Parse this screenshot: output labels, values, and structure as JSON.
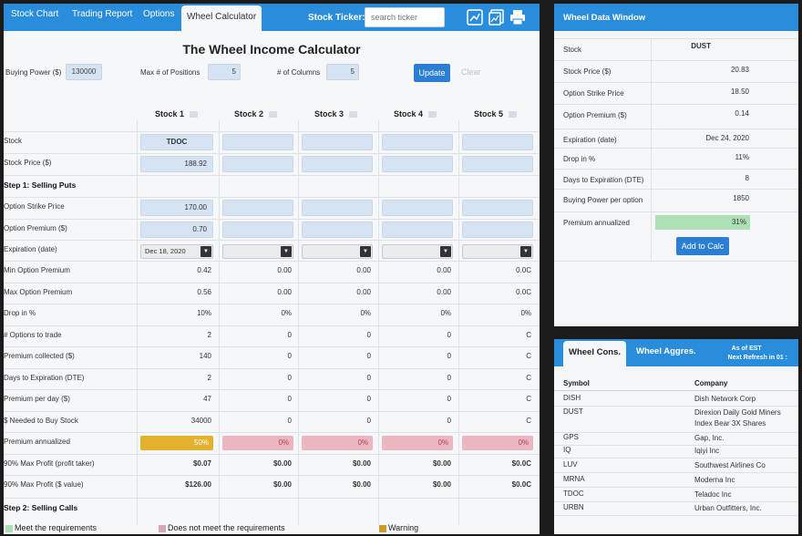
{
  "nav": {
    "tabs": [
      "Stock Chart",
      "Trading Report",
      "Options",
      "Wheel Calculator"
    ],
    "ticker_label": "Stock Ticker:",
    "ticker_placeholder": "search ticker",
    "icons": [
      "chart-icon",
      "report-icon",
      "print-icon"
    ]
  },
  "calculator": {
    "title": "The Wheel Income Calculator",
    "buying_power_label": "Buying Power ($)",
    "buying_power": "130000",
    "max_positions_label": "Max # of Positions",
    "max_positions": "5",
    "columns_label": "# of Columns",
    "columns": "5",
    "update_label": "Update",
    "clear_label": "Clear",
    "stocks": [
      "Stock 1",
      "Stock 2",
      "Stock 3",
      "Stock 4",
      "Stock 5"
    ],
    "rows": {
      "stock": "Stock",
      "stock_price": "Stock Price ($)",
      "step1": "Step 1: Selling Puts",
      "strike": "Option Strike Price",
      "premium": "Option Premium ($)",
      "expiration": "Expiration (date)",
      "min_premium": "Min Option Premium",
      "max_premium": "Max Option Premium",
      "drop": "Drop in %",
      "options_to_trade": "# Options to trade",
      "premium_collected": "Premium collected ($)",
      "days_to_exp": "Days to Expiration (DTE)",
      "premium_per_day": "Premium per day ($)",
      "needed_to_buy": "$ Needed to Buy Stock",
      "premium_annualized": "Premium annualized",
      "max_profit_taker": "90% Max Profit (profit taker)",
      "max_profit_value": "90% Max Profit ($ value)",
      "step2": "Step 2: Selling Calls"
    },
    "values": {
      "stock": [
        "TDOC",
        "",
        "",
        "",
        ""
      ],
      "stock_price": [
        "188.92",
        "",
        "",
        "",
        ""
      ],
      "strike": [
        "170.00",
        "",
        "",
        "",
        ""
      ],
      "premium": [
        "0.70",
        "",
        "",
        "",
        ""
      ],
      "expiration": [
        "Dec 18, 2020",
        "",
        "",
        "",
        ""
      ],
      "min_premium": [
        "0.42",
        "0.00",
        "0.00",
        "0.00",
        "0.0C"
      ],
      "max_premium": [
        "0.56",
        "0.00",
        "0.00",
        "0.00",
        "0.0C"
      ],
      "drop": [
        "10%",
        "0%",
        "0%",
        "0%",
        "0%"
      ],
      "options_to_trade": [
        "2",
        "0",
        "0",
        "0",
        "C"
      ],
      "premium_collected": [
        "140",
        "0",
        "0",
        "0",
        "C"
      ],
      "days_to_exp": [
        "2",
        "0",
        "0",
        "0",
        "C"
      ],
      "premium_per_day": [
        "47",
        "0",
        "0",
        "0",
        "C"
      ],
      "needed_to_buy": [
        "34000",
        "0",
        "0",
        "0",
        "C"
      ],
      "premium_annualized": [
        "50%",
        "0%",
        "0%",
        "0%",
        "0%"
      ],
      "max_profit_taker": [
        "$0.07",
        "$0.00",
        "$0.00",
        "$0.00",
        "$0.0C"
      ],
      "max_profit_value": [
        "$126.00",
        "$0.00",
        "$0.00",
        "$0.00",
        "$0.0C"
      ]
    }
  },
  "legend": {
    "meet": "Meet the requirements",
    "not_meet": "Does not meet the requirements",
    "warning": "Warning",
    "colors": {
      "meet": "#aee0b5",
      "not_meet": "#ebb6c0",
      "warning": "#e4b12f"
    }
  },
  "data_window": {
    "title": "Wheel Data Window",
    "rows": [
      {
        "label": "Stock",
        "value": "DUST"
      },
      {
        "label": "Stock Price ($)",
        "value": "20.83"
      },
      {
        "label": "Option Strike Price",
        "value": "18.50"
      },
      {
        "label": "Option Premium ($)",
        "value": "0.14"
      },
      {
        "label": "Expiration (date)",
        "value": "Dec 24, 2020"
      },
      {
        "label": "Drop in %",
        "value": "11%"
      },
      {
        "label": "Days to Expiration (DTE)",
        "value": "8"
      },
      {
        "label": "Buying Power per option",
        "value": "1850"
      },
      {
        "label": "Premium annualized",
        "value": "31%"
      }
    ],
    "add_label": "Add to Calc"
  },
  "watchlist": {
    "tabs": [
      "Wheel Cons.",
      "Wheel Aggres."
    ],
    "as_of": "As of EST",
    "next_refresh": "Next Refresh in 01 :",
    "headers": [
      "Symbol",
      "Company"
    ],
    "rows": [
      {
        "symbol": "DISH",
        "company": "Dish Network Corp"
      },
      {
        "symbol": "DUST",
        "company": "Direxion Daily Gold Miners Index Bear 3X Shares"
      },
      {
        "symbol": "GPS",
        "company": "Gap, Inc."
      },
      {
        "symbol": "IQ",
        "company": "Iqiyi Inc"
      },
      {
        "symbol": "LUV",
        "company": "Southwest Airlines Co"
      },
      {
        "symbol": "MRNA",
        "company": "Moderna Inc"
      },
      {
        "symbol": "TDOC",
        "company": "Teladoc Inc"
      },
      {
        "symbol": "URBN",
        "company": "Urban Outfitters, Inc."
      }
    ]
  },
  "colors": {
    "accent": "#2a8ddb",
    "button": "#2a7fd4",
    "input_bg": "#d5e3f2"
  }
}
